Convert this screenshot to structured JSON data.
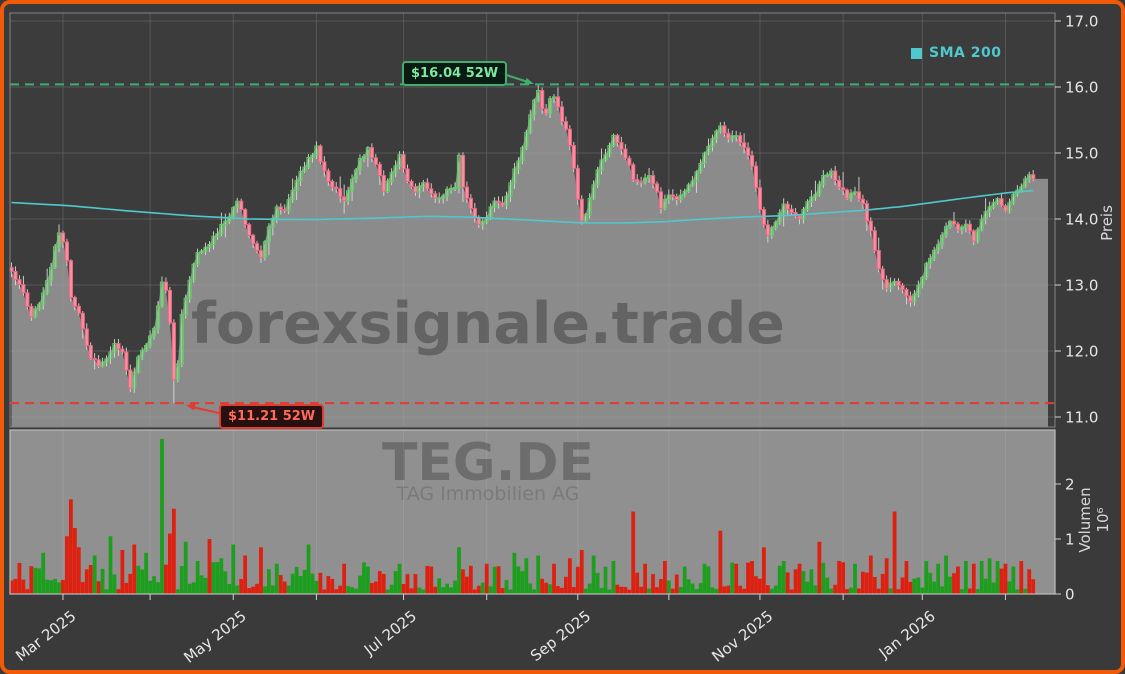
{
  "window": {
    "description": "Candlestick stock chart with volume panel, 52-week high/low markers and SMA 200 overlay"
  },
  "legend": {
    "label": "SMA 200",
    "color": "#4fc8ce"
  },
  "watermarks": {
    "site": "forexsignale.trade",
    "symbol": "TEG.DE",
    "company": "TAG Immobilien AG"
  },
  "chart_data": {
    "type": "candlestick",
    "title": "",
    "legend_position": "top-right",
    "grid": true,
    "price_axis": {
      "label": "Preis",
      "ticks": [
        "17.0",
        "16.0",
        "15.0",
        "14.0",
        "13.0",
        "12.0",
        "11.0"
      ],
      "values": [
        17,
        16,
        15,
        14,
        13,
        12,
        11
      ],
      "range": [
        10.85,
        17.12
      ]
    },
    "volume_axis": {
      "label": "Volumen",
      "multiplier": "10⁶",
      "ticks": [
        "2",
        "1",
        "0"
      ],
      "values": [
        2,
        1,
        0
      ],
      "range": [
        0,
        2.98
      ]
    },
    "x_axis": {
      "months": [
        {
          "day": 13,
          "label": "Mar 2025"
        },
        {
          "day": 35,
          "label": ""
        },
        {
          "day": 56,
          "label": "May 2025"
        },
        {
          "day": 77,
          "label": ""
        },
        {
          "day": 99,
          "label": "Jul 2025"
        },
        {
          "day": 120,
          "label": ""
        },
        {
          "day": 143,
          "label": "Sep 2025"
        },
        {
          "day": 166,
          "label": ""
        },
        {
          "day": 189,
          "label": "Nov 2025"
        },
        {
          "day": 210,
          "label": ""
        },
        {
          "day": 230,
          "label": "Jan 2026"
        },
        {
          "day": 251,
          "label": ""
        }
      ]
    },
    "annotations": {
      "high": {
        "label": "$16.04 52W",
        "price": 16.04,
        "day": 133
      },
      "low": {
        "label": "$11.21 52W",
        "price": 11.21,
        "day": 41
      }
    },
    "days": 259,
    "seed": 12,
    "close_anchors": [
      [
        0,
        13.22
      ],
      [
        2,
        13.0
      ],
      [
        4,
        12.7
      ],
      [
        5,
        12.55
      ],
      [
        7,
        12.7
      ],
      [
        9,
        13.05
      ],
      [
        11,
        13.55
      ],
      [
        12,
        13.8
      ],
      [
        13,
        13.65
      ],
      [
        14,
        13.35
      ],
      [
        15,
        12.8
      ],
      [
        17,
        12.55
      ],
      [
        18,
        12.3
      ],
      [
        20,
        11.9
      ],
      [
        22,
        11.78
      ],
      [
        24,
        11.9
      ],
      [
        26,
        12.12
      ],
      [
        28,
        12.0
      ],
      [
        30,
        11.45
      ],
      [
        31,
        11.7
      ],
      [
        32,
        11.9
      ],
      [
        34,
        12.1
      ],
      [
        36,
        12.35
      ],
      [
        38,
        13.05
      ],
      [
        39,
        12.9
      ],
      [
        40,
        12.45
      ],
      [
        41,
        11.6
      ],
      [
        42,
        11.8
      ],
      [
        43,
        12.55
      ],
      [
        45,
        13.1
      ],
      [
        47,
        13.5
      ],
      [
        50,
        13.62
      ],
      [
        53,
        13.9
      ],
      [
        55,
        14.05
      ],
      [
        57,
        14.3
      ],
      [
        59,
        13.95
      ],
      [
        61,
        13.62
      ],
      [
        63,
        13.42
      ],
      [
        65,
        13.9
      ],
      [
        67,
        14.18
      ],
      [
        69,
        14.1
      ],
      [
        71,
        14.45
      ],
      [
        73,
        14.7
      ],
      [
        75,
        14.9
      ],
      [
        77,
        15.08
      ],
      [
        79,
        14.7
      ],
      [
        81,
        14.5
      ],
      [
        84,
        14.28
      ],
      [
        86,
        14.6
      ],
      [
        88,
        14.9
      ],
      [
        90,
        15.05
      ],
      [
        92,
        14.8
      ],
      [
        94,
        14.45
      ],
      [
        96,
        14.7
      ],
      [
        98,
        14.95
      ],
      [
        100,
        14.6
      ],
      [
        102,
        14.4
      ],
      [
        104,
        14.55
      ],
      [
        106,
        14.4
      ],
      [
        108,
        14.3
      ],
      [
        110,
        14.45
      ],
      [
        112,
        14.5
      ],
      [
        113,
        14.95
      ],
      [
        114,
        14.5
      ],
      [
        116,
        14.15
      ],
      [
        118,
        13.9
      ],
      [
        120,
        14.05
      ],
      [
        122,
        14.3
      ],
      [
        124,
        14.2
      ],
      [
        126,
        14.55
      ],
      [
        128,
        14.9
      ],
      [
        130,
        15.3
      ],
      [
        131,
        15.55
      ],
      [
        132,
        15.8
      ],
      [
        133,
        15.92
      ],
      [
        134,
        15.7
      ],
      [
        135,
        15.62
      ],
      [
        136,
        15.85
      ],
      [
        137,
        15.88
      ],
      [
        138,
        15.7
      ],
      [
        139,
        15.5
      ],
      [
        140,
        15.35
      ],
      [
        141,
        15.1
      ],
      [
        142,
        14.75
      ],
      [
        143,
        14.3
      ],
      [
        144,
        14.0
      ],
      [
        145,
        14.1
      ],
      [
        146,
        14.3
      ],
      [
        148,
        14.75
      ],
      [
        150,
        15.0
      ],
      [
        152,
        15.28
      ],
      [
        154,
        15.05
      ],
      [
        156,
        14.85
      ],
      [
        157,
        14.6
      ],
      [
        159,
        14.55
      ],
      [
        161,
        14.65
      ],
      [
        163,
        14.4
      ],
      [
        164,
        14.18
      ],
      [
        166,
        14.35
      ],
      [
        168,
        14.3
      ],
      [
        170,
        14.45
      ],
      [
        172,
        14.6
      ],
      [
        174,
        14.85
      ],
      [
        176,
        15.1
      ],
      [
        178,
        15.3
      ],
      [
        179,
        15.42
      ],
      [
        181,
        15.2
      ],
      [
        183,
        15.28
      ],
      [
        185,
        15.1
      ],
      [
        187,
        14.8
      ],
      [
        188,
        14.5
      ],
      [
        189,
        14.15
      ],
      [
        190,
        13.9
      ],
      [
        191,
        13.75
      ],
      [
        193,
        13.95
      ],
      [
        195,
        14.2
      ],
      [
        197,
        14.1
      ],
      [
        199,
        14.0
      ],
      [
        201,
        14.25
      ],
      [
        203,
        14.4
      ],
      [
        205,
        14.68
      ],
      [
        207,
        14.7
      ],
      [
        209,
        14.5
      ],
      [
        211,
        14.32
      ],
      [
        213,
        14.4
      ],
      [
        215,
        14.2
      ],
      [
        217,
        13.8
      ],
      [
        219,
        13.25
      ],
      [
        221,
        12.95
      ],
      [
        223,
        13.05
      ],
      [
        225,
        12.95
      ],
      [
        227,
        12.78
      ],
      [
        229,
        13.0
      ],
      [
        231,
        13.3
      ],
      [
        233,
        13.5
      ],
      [
        235,
        13.75
      ],
      [
        237,
        14.0
      ],
      [
        239,
        13.82
      ],
      [
        241,
        13.95
      ],
      [
        243,
        13.65
      ],
      [
        245,
        14.0
      ],
      [
        247,
        14.18
      ],
      [
        249,
        14.3
      ],
      [
        251,
        14.12
      ],
      [
        253,
        14.38
      ],
      [
        255,
        14.5
      ],
      [
        257,
        14.68
      ],
      [
        258,
        14.58
      ]
    ],
    "sma200_anchors": [
      [
        0,
        14.25
      ],
      [
        15,
        14.2
      ],
      [
        30,
        14.12
      ],
      [
        45,
        14.05
      ],
      [
        60,
        14.0
      ],
      [
        75,
        13.99
      ],
      [
        90,
        14.01
      ],
      [
        105,
        14.04
      ],
      [
        115,
        14.03
      ],
      [
        125,
        14.0
      ],
      [
        135,
        13.97
      ],
      [
        145,
        13.94
      ],
      [
        155,
        13.94
      ],
      [
        165,
        13.96
      ],
      [
        175,
        14.0
      ],
      [
        185,
        14.03
      ],
      [
        195,
        14.05
      ],
      [
        205,
        14.09
      ],
      [
        215,
        14.13
      ],
      [
        225,
        14.19
      ],
      [
        235,
        14.27
      ],
      [
        245,
        14.35
      ],
      [
        252,
        14.4
      ],
      [
        258,
        14.43
      ]
    ],
    "volume_spikes": [
      [
        8,
        0.75,
        "up"
      ],
      [
        14,
        1.05,
        "dn"
      ],
      [
        15,
        1.72,
        "dn"
      ],
      [
        16,
        1.2,
        "dn"
      ],
      [
        17,
        0.85,
        "dn"
      ],
      [
        21,
        0.7,
        "up"
      ],
      [
        25,
        1.05,
        "up"
      ],
      [
        28,
        0.8,
        "dn"
      ],
      [
        31,
        0.9,
        "dn"
      ],
      [
        34,
        0.75,
        "up"
      ],
      [
        38,
        2.82,
        "up"
      ],
      [
        40,
        1.1,
        "dn"
      ],
      [
        41,
        1.55,
        "dn"
      ],
      [
        44,
        0.95,
        "up"
      ],
      [
        47,
        0.6,
        "up"
      ],
      [
        50,
        1.0,
        "dn"
      ],
      [
        53,
        0.65,
        "up"
      ],
      [
        56,
        0.9,
        "up"
      ],
      [
        59,
        0.7,
        "dn"
      ],
      [
        63,
        0.85,
        "dn"
      ],
      [
        67,
        0.55,
        "up"
      ],
      [
        75,
        0.9,
        "up"
      ],
      [
        84,
        0.55,
        "dn"
      ],
      [
        90,
        0.5,
        "up"
      ],
      [
        98,
        0.55,
        "up"
      ],
      [
        106,
        0.5,
        "dn"
      ],
      [
        113,
        0.85,
        "up"
      ],
      [
        120,
        0.55,
        "dn"
      ],
      [
        127,
        0.75,
        "up"
      ],
      [
        130,
        0.65,
        "up"
      ],
      [
        133,
        0.7,
        "up"
      ],
      [
        137,
        0.55,
        "dn"
      ],
      [
        141,
        0.65,
        "dn"
      ],
      [
        144,
        0.8,
        "dn"
      ],
      [
        147,
        0.7,
        "up"
      ],
      [
        152,
        0.6,
        "up"
      ],
      [
        157,
        1.5,
        "dn"
      ],
      [
        160,
        0.55,
        "dn"
      ],
      [
        165,
        0.6,
        "dn"
      ],
      [
        170,
        0.5,
        "up"
      ],
      [
        175,
        0.55,
        "up"
      ],
      [
        179,
        1.15,
        "dn"
      ],
      [
        183,
        0.55,
        "dn"
      ],
      [
        187,
        0.6,
        "dn"
      ],
      [
        190,
        0.85,
        "dn"
      ],
      [
        195,
        0.6,
        "up"
      ],
      [
        199,
        0.55,
        "dn"
      ],
      [
        204,
        0.95,
        "dn"
      ],
      [
        209,
        0.6,
        "dn"
      ],
      [
        213,
        0.55,
        "up"
      ],
      [
        217,
        0.7,
        "dn"
      ],
      [
        221,
        0.65,
        "dn"
      ],
      [
        223,
        1.5,
        "dn"
      ],
      [
        226,
        0.6,
        "dn"
      ],
      [
        231,
        0.6,
        "up"
      ],
      [
        234,
        0.55,
        "up"
      ],
      [
        236,
        0.7,
        "up"
      ],
      [
        239,
        0.5,
        "dn"
      ],
      [
        241,
        0.6,
        "up"
      ],
      [
        243,
        0.55,
        "dn"
      ],
      [
        245,
        0.6,
        "up"
      ],
      [
        247,
        0.65,
        "up"
      ],
      [
        249,
        0.6,
        "up"
      ],
      [
        251,
        0.55,
        "dn"
      ],
      [
        253,
        0.5,
        "up"
      ],
      [
        255,
        0.6,
        "dn"
      ],
      [
        257,
        0.45,
        "dn"
      ]
    ],
    "colors": {
      "frame_border": "#f15a07",
      "background": "#3a3a3a",
      "panel_bg": "#3c3c3c",
      "grid": "#4d4d4d",
      "area_fill": "#8d8d8d",
      "volume_bg": "#909090",
      "candle_up": "#5ad05e",
      "candle_down": "#f0647e",
      "candle_down_fill": "#f192a4",
      "wick": "#d9d9d9",
      "sma": "#4fc8ce",
      "high_line": "#3fae6e",
      "low_line": "#e23b30",
      "vol_up": "#1e9e1e",
      "vol_down": "#dd2010",
      "axis_text": "#e6e6e6",
      "tick_mark": "#d0d0d0",
      "plot_border": "#858585",
      "volume_border": "#bdbdbd"
    }
  }
}
